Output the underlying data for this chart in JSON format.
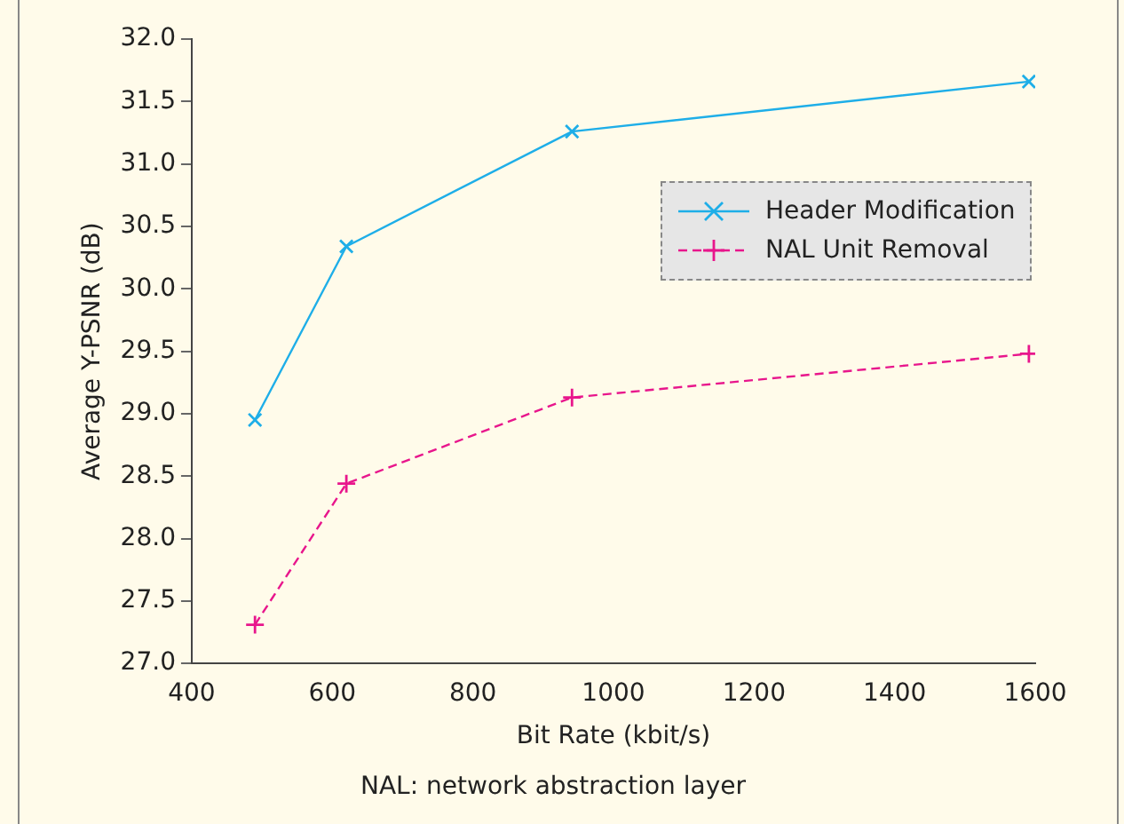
{
  "chart_data": {
    "type": "line",
    "xlabel": "Bit Rate (kbit/s)",
    "ylabel": "Average Y-PSNR (dB)",
    "annotations": [
      "NAL: network abstraction layer"
    ],
    "x": [
      490,
      620,
      941,
      1591
    ],
    "series": [
      {
        "name": "Header Modification",
        "color": "#1eaee8",
        "values": [
          28.95,
          30.34,
          31.26,
          31.66
        ],
        "marker": "cross",
        "line_style": "solid"
      },
      {
        "name": "NAL Unit Removal",
        "color": "#e8168c",
        "values": [
          27.31,
          28.44,
          29.13,
          29.48
        ],
        "marker": "plus",
        "line_style": "dashed"
      }
    ],
    "xlim": [
      400,
      1600
    ],
    "xticks": [
      400,
      600,
      800,
      1000,
      1200,
      1400,
      1600
    ],
    "ylim": [
      27.0,
      32.0
    ],
    "yticks": [
      {
        "value": 27,
        "label": "27.0"
      },
      27.5,
      {
        "value": 28,
        "label": "28.0"
      },
      28.5,
      {
        "value": 29,
        "label": "29.0"
      },
      29.5,
      {
        "value": 30,
        "label": "30.0"
      },
      30.5,
      {
        "value": 31,
        "label": "31.0"
      },
      31.5,
      {
        "value": 32,
        "label": "32.0"
      }
    ],
    "grid": false,
    "legend": "top right"
  }
}
